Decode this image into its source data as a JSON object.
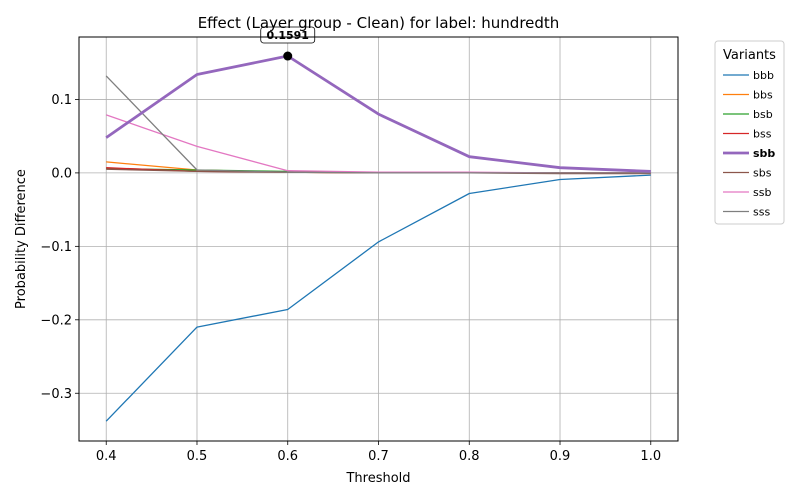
{
  "chart_data": {
    "type": "line",
    "title": "Effect (Layer group - Clean) for label: hundredth",
    "xlabel": "Threshold",
    "ylabel": "Probability Difference",
    "x": [
      0.4,
      0.5,
      0.6,
      0.7,
      0.8,
      0.9,
      1.0
    ],
    "xticks": [
      "0.4",
      "0.5",
      "0.6",
      "0.7",
      "0.8",
      "0.9",
      "1.0"
    ],
    "yticks": [
      {
        "value": -0.3,
        "label": "−0.3"
      },
      {
        "value": -0.2,
        "label": "−0.2"
      },
      {
        "value": -0.1,
        "label": "−0.1"
      },
      {
        "value": 0.0,
        "label": "0.0"
      },
      {
        "value": 0.1,
        "label": "0.1"
      }
    ],
    "xlim": [
      0.37,
      1.03
    ],
    "ylim": [
      -0.365,
      0.185
    ],
    "grid": true,
    "legend": {
      "title": "Variants",
      "placement": "outside-right",
      "highlight": "sbb"
    },
    "series": [
      {
        "name": "bbb",
        "color": "#1f77b4",
        "values": [
          -0.338,
          -0.21,
          -0.186,
          -0.094,
          -0.028,
          -0.009,
          -0.003
        ]
      },
      {
        "name": "bbs",
        "color": "#ff7f0e",
        "values": [
          0.015,
          0.004,
          0.001,
          0.0,
          0.0,
          0.0,
          0.0
        ]
      },
      {
        "name": "bsb",
        "color": "#2ca02c",
        "values": [
          0.006,
          0.004,
          0.002,
          0.0,
          0.0,
          0.0,
          0.0
        ]
      },
      {
        "name": "bss",
        "color": "#d62728",
        "values": [
          0.007,
          0.002,
          0.001,
          0.0,
          0.0,
          0.0,
          0.0
        ]
      },
      {
        "name": "sbb",
        "color": "#9467bd",
        "values": [
          0.048,
          0.134,
          0.1591,
          0.08,
          0.022,
          0.007,
          0.002
        ]
      },
      {
        "name": "sbs",
        "color": "#8c564b",
        "values": [
          0.005,
          0.002,
          0.001,
          0.0,
          0.0,
          -0.001,
          -0.001
        ]
      },
      {
        "name": "ssb",
        "color": "#e377c2",
        "values": [
          0.079,
          0.036,
          0.003,
          0.001,
          0.001,
          0.0,
          0.0
        ]
      },
      {
        "name": "sss",
        "color": "#7f7f7f",
        "values": [
          0.132,
          0.004,
          0.001,
          0.0,
          0.0,
          0.0,
          0.0
        ]
      }
    ],
    "annotation": {
      "series": "sbb",
      "x": 0.6,
      "y": 0.1591,
      "text": "0.1591"
    }
  }
}
